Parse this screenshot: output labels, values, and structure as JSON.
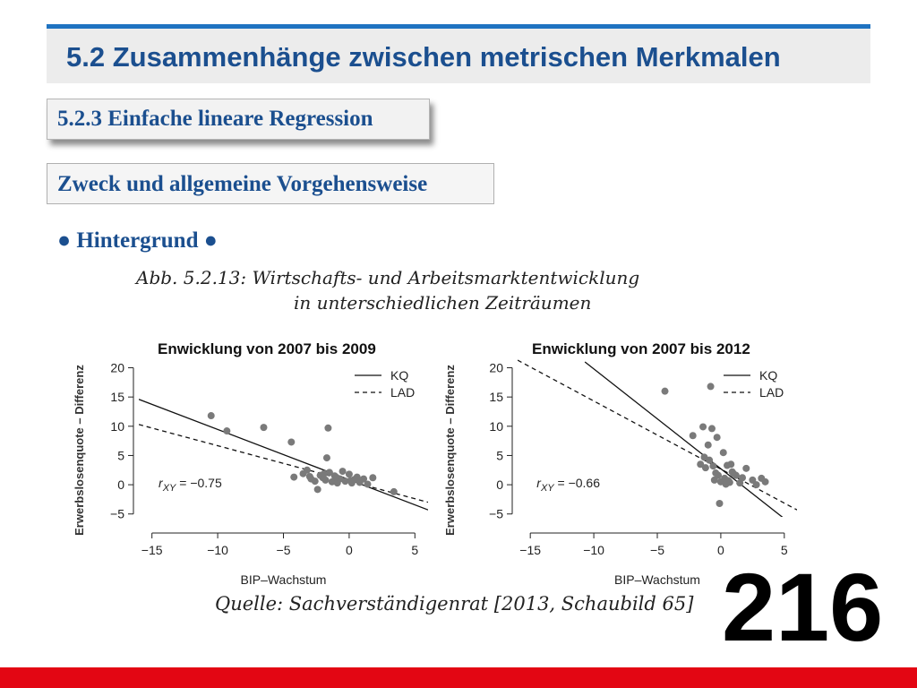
{
  "header": {
    "title": "5.2 Zusammenhänge zwischen metrischen Merkmalen"
  },
  "subsection": {
    "label": "5.2.3 Einfache lineare Regression"
  },
  "topic": {
    "label": "Zweck und allgemeine Vorgehensweise"
  },
  "bullet": {
    "label": "● Hintergrund ●"
  },
  "figure": {
    "caption_line1": "Abb. 5.2.13: Wirtschafts- und Arbeitsmarktentwicklung",
    "caption_line2": "in unterschiedlichen Zeiträumen",
    "source": "Quelle: Sachverständigenrat [2013, Schaubild 65]"
  },
  "page_number": "216",
  "colors": {
    "header_accent": "#1f73c1",
    "title_text": "#1b4f8f",
    "bottom_bar": "#e30613",
    "points": "#7a7a7a"
  },
  "chart_data": [
    {
      "type": "scatter",
      "title": "Enwicklung von 2007 bis 2009",
      "xlabel": "BIP–Wachstum",
      "ylabel": "Erwerbslosenquote – Differenz",
      "xlim": [
        -16,
        6
      ],
      "ylim": [
        -5.5,
        21
      ],
      "xticks": [
        -15,
        -10,
        -5,
        0,
        5
      ],
      "yticks": [
        -5,
        0,
        5,
        10,
        15,
        20
      ],
      "xtick_labels": [
        "−15",
        "−10",
        "−5",
        "0",
        "5"
      ],
      "ytick_labels": [
        "−5",
        "0",
        "5",
        "10",
        "15",
        "20"
      ],
      "legend": {
        "position": "top-right",
        "entries": [
          "KQ",
          "LAD"
        ]
      },
      "annotation": {
        "symbol": "r",
        "subscript": "XY",
        "value_text": " = −0.75",
        "x": -14.5,
        "y": 0
      },
      "lines": [
        {
          "name": "KQ",
          "style": "solid",
          "x": [
            -16,
            6
          ],
          "y": [
            14.6,
            -4.3
          ]
        },
        {
          "name": "LAD",
          "style": "dashed",
          "x": [
            -16,
            6
          ],
          "y": [
            10.3,
            -3.0
          ]
        }
      ],
      "points": {
        "x": [
          -10.5,
          -9.3,
          -6.5,
          -4.4,
          -1.6,
          -1.7,
          -4.2,
          -3.5,
          -3.2,
          -2.9,
          -2.6,
          -2.4,
          -2.2,
          -2.0,
          -1.8,
          -1.5,
          -1.3,
          -1.1,
          -0.9,
          -0.7,
          -0.5,
          -0.3,
          0.0,
          0.2,
          0.4,
          0.6,
          0.8,
          1.1,
          1.4,
          1.8,
          -3.0,
          -1.9,
          -1.0,
          0.1,
          3.4
        ],
        "y": [
          11.8,
          9.2,
          9.8,
          7.3,
          9.7,
          4.6,
          1.3,
          1.9,
          2.5,
          1.0,
          0.6,
          -0.8,
          1.6,
          1.2,
          0.8,
          2.1,
          0.5,
          1.5,
          0.3,
          1.0,
          2.3,
          0.6,
          1.8,
          0.3,
          0.9,
          1.3,
          0.4,
          1.0,
          0.1,
          1.2,
          1.4,
          1.9,
          1.3,
          0.7,
          -1.2
        ]
      }
    },
    {
      "type": "scatter",
      "title": "Enwicklung von 2007 bis 2012",
      "xlabel": "BIP–Wachstum",
      "ylabel": "Erwerbslosenquote – Differenz",
      "xlim": [
        -16,
        6
      ],
      "ylim": [
        -5.5,
        21
      ],
      "xticks": [
        -15,
        -10,
        -5,
        0,
        5
      ],
      "yticks": [
        -5,
        0,
        5,
        10,
        15,
        20
      ],
      "xtick_labels": [
        "−15",
        "−10",
        "−5",
        "0",
        "5"
      ],
      "ytick_labels": [
        "−5",
        "0",
        "5",
        "10",
        "15",
        "20"
      ],
      "legend": {
        "position": "top-right",
        "entries": [
          "KQ",
          "LAD"
        ]
      },
      "annotation": {
        "symbol": "r",
        "subscript": "XY",
        "value_text": " = −0.66",
        "x": -14.5,
        "y": 0
      },
      "lines": [
        {
          "name": "KQ",
          "style": "solid",
          "x": [
            -10.7,
            5.0
          ],
          "y": [
            21.0,
            -5.8
          ]
        },
        {
          "name": "LAD",
          "style": "dashed",
          "x": [
            -16,
            6
          ],
          "y": [
            21.3,
            -4.3
          ]
        }
      ],
      "points": {
        "x": [
          -4.4,
          -0.8,
          -1.4,
          -0.7,
          -0.3,
          -2.2,
          -1.0,
          -1.3,
          -0.9,
          -1.6,
          -1.2,
          -0.6,
          -0.4,
          0.2,
          0.5,
          0.8,
          1.0,
          0.3,
          0.0,
          -0.2,
          0.6,
          1.2,
          1.5,
          2.0,
          2.5,
          3.2,
          -0.1,
          0.4,
          0.7,
          0.9,
          2.8,
          3.5,
          1.7,
          -0.5
        ],
        "y": [
          16.0,
          16.8,
          9.9,
          9.6,
          8.1,
          8.4,
          6.8,
          4.7,
          4.2,
          3.5,
          2.9,
          3.2,
          2.0,
          5.5,
          3.3,
          3.5,
          1.9,
          1.1,
          0.5,
          1.6,
          0.7,
          1.6,
          0.3,
          2.8,
          0.8,
          1.1,
          -3.2,
          0.1,
          0.4,
          2.2,
          0.0,
          0.5,
          1.2,
          0.8
        ]
      }
    }
  ]
}
